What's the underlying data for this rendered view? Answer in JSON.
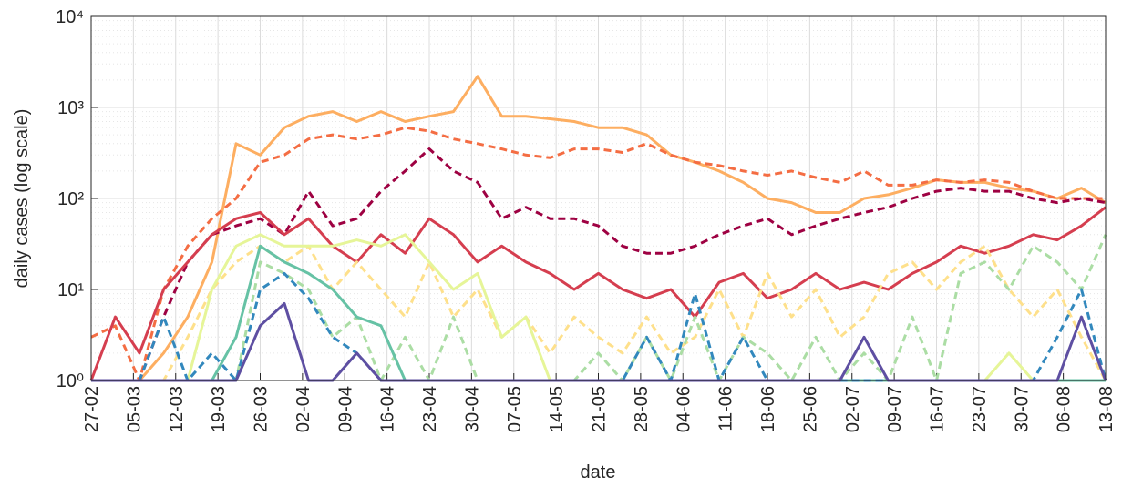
{
  "chart_data": {
    "type": "line",
    "x_label": "date",
    "y_label": "daily cases (log scale)",
    "log_y": true,
    "grid": true,
    "x": [
      0,
      4,
      8,
      12,
      16,
      20,
      24,
      28,
      32,
      36,
      40,
      44,
      48,
      52,
      56,
      60,
      64,
      68,
      72,
      76,
      80,
      84,
      88,
      92,
      96,
      100,
      104,
      108,
      112,
      116,
      120,
      124,
      128,
      132,
      136,
      140,
      144,
      148,
      152,
      156,
      160,
      164,
      168
    ],
    "xlim": [
      0,
      168
    ],
    "xticks": [
      {
        "value": 0,
        "label": "27-02"
      },
      {
        "value": 7,
        "label": "05-03"
      },
      {
        "value": 14,
        "label": "12-03"
      },
      {
        "value": 21,
        "label": "19-03"
      },
      {
        "value": 28,
        "label": "26-03"
      },
      {
        "value": 35,
        "label": "02-04"
      },
      {
        "value": 42,
        "label": "09-04"
      },
      {
        "value": 49,
        "label": "16-04"
      },
      {
        "value": 56,
        "label": "23-04"
      },
      {
        "value": 63,
        "label": "30-04"
      },
      {
        "value": 70,
        "label": "07-05"
      },
      {
        "value": 77,
        "label": "14-05"
      },
      {
        "value": 84,
        "label": "21-05"
      },
      {
        "value": 91,
        "label": "28-05"
      },
      {
        "value": 98,
        "label": "04-06"
      },
      {
        "value": 105,
        "label": "11-06"
      },
      {
        "value": 112,
        "label": "18-06"
      },
      {
        "value": 119,
        "label": "25-06"
      },
      {
        "value": 126,
        "label": "02-07"
      },
      {
        "value": 133,
        "label": "09-07"
      },
      {
        "value": 140,
        "label": "16-07"
      },
      {
        "value": 147,
        "label": "23-07"
      },
      {
        "value": 154,
        "label": "30-07"
      },
      {
        "value": 161,
        "label": "06-08"
      },
      {
        "value": 168,
        "label": "13-08"
      }
    ],
    "ylim": [
      1,
      10000
    ],
    "yticks": [
      {
        "value": 1,
        "label": "10⁰"
      },
      {
        "value": 10,
        "label": "10¹"
      },
      {
        "value": 100,
        "label": "10²"
      },
      {
        "value": 1000,
        "label": "10³"
      },
      {
        "value": 10000,
        "label": "10⁴"
      }
    ],
    "series": [
      {
        "color": "#fdae61",
        "dash": false,
        "values": [
          1,
          1,
          1,
          2,
          5,
          20,
          400,
          300,
          600,
          800,
          900,
          700,
          900,
          700,
          800,
          900,
          2200,
          800,
          800,
          750,
          700,
          600,
          600,
          500,
          300,
          250,
          200,
          150,
          100,
          90,
          70,
          70,
          100,
          110,
          130,
          160,
          150,
          150,
          130,
          120,
          100,
          130,
          90
        ]
      },
      {
        "color": "#f46d43",
        "dash": true,
        "values": [
          3,
          4,
          1,
          10,
          30,
          60,
          100,
          250,
          300,
          450,
          500,
          450,
          500,
          600,
          550,
          450,
          400,
          350,
          300,
          280,
          350,
          350,
          320,
          400,
          300,
          250,
          230,
          200,
          180,
          200,
          170,
          150,
          200,
          140,
          140,
          160,
          150,
          160,
          150,
          120,
          100,
          100,
          100
        ]
      },
      {
        "color": "#9e0142",
        "dash": true,
        "values": [
          1,
          1,
          1,
          5,
          20,
          40,
          50,
          60,
          40,
          120,
          50,
          60,
          120,
          200,
          350,
          200,
          150,
          60,
          80,
          60,
          60,
          50,
          30,
          25,
          25,
          30,
          40,
          50,
          60,
          40,
          50,
          60,
          70,
          80,
          100,
          120,
          130,
          120,
          120,
          100,
          90,
          100,
          90
        ]
      },
      {
        "color": "#d53e4f",
        "dash": false,
        "values": [
          1,
          5,
          2,
          10,
          20,
          40,
          60,
          70,
          40,
          60,
          30,
          20,
          40,
          25,
          60,
          40,
          20,
          30,
          20,
          15,
          10,
          15,
          10,
          8,
          10,
          5,
          12,
          15,
          8,
          10,
          15,
          10,
          12,
          10,
          15,
          20,
          30,
          25,
          30,
          40,
          35,
          50,
          80
        ]
      },
      {
        "color": "#fee08b",
        "dash": true,
        "values": [
          1,
          1,
          1,
          1,
          3,
          10,
          20,
          30,
          20,
          30,
          10,
          20,
          10,
          5,
          20,
          5,
          10,
          3,
          5,
          2,
          5,
          3,
          2,
          5,
          2,
          3,
          10,
          3,
          15,
          5,
          10,
          3,
          5,
          15,
          20,
          10,
          20,
          30,
          10,
          5,
          10,
          3,
          1
        ]
      },
      {
        "color": "#e6f598",
        "dash": false,
        "values": [
          1,
          1,
          1,
          1,
          1,
          10,
          30,
          40,
          30,
          30,
          30,
          35,
          30,
          40,
          20,
          10,
          15,
          3,
          5,
          1,
          1,
          1,
          1,
          1,
          1,
          1,
          1,
          1,
          1,
          1,
          1,
          1,
          1,
          1,
          1,
          1,
          1,
          1,
          2,
          1,
          1,
          1,
          1
        ]
      },
      {
        "color": "#abdda4",
        "dash": true,
        "values": [
          1,
          1,
          1,
          1,
          1,
          1,
          1,
          20,
          15,
          10,
          3,
          5,
          1,
          3,
          1,
          5,
          1,
          1,
          1,
          1,
          1,
          2,
          1,
          3,
          1,
          5,
          1,
          3,
          2,
          1,
          3,
          1,
          2,
          1,
          5,
          1,
          15,
          20,
          10,
          30,
          20,
          10,
          40
        ]
      },
      {
        "color": "#66c2a5",
        "dash": false,
        "values": [
          1,
          1,
          1,
          1,
          1,
          1,
          3,
          30,
          20,
          15,
          10,
          5,
          4,
          1,
          1,
          1,
          1,
          1,
          1,
          1,
          1,
          1,
          1,
          1,
          1,
          1,
          1,
          1,
          1,
          1,
          1,
          1,
          1,
          1,
          1,
          1,
          1,
          1,
          1,
          1,
          1,
          1,
          1
        ]
      },
      {
        "color": "#3288bd",
        "dash": true,
        "values": [
          1,
          1,
          1,
          5,
          1,
          2,
          1,
          10,
          15,
          8,
          3,
          2,
          1,
          1,
          1,
          1,
          1,
          1,
          1,
          1,
          1,
          1,
          1,
          3,
          1,
          9,
          1,
          3,
          1,
          1,
          1,
          1,
          1,
          1,
          1,
          1,
          1,
          1,
          1,
          1,
          3,
          10,
          1
        ]
      },
      {
        "color": "#5e4fa2",
        "dash": false,
        "values": [
          1,
          1,
          1,
          1,
          1,
          1,
          1,
          4,
          7,
          1,
          1,
          2,
          1,
          1,
          1,
          1,
          1,
          1,
          1,
          1,
          1,
          1,
          1,
          1,
          1,
          1,
          1,
          1,
          1,
          1,
          1,
          1,
          3,
          1,
          1,
          1,
          1,
          1,
          1,
          1,
          1,
          5,
          1
        ]
      }
    ]
  }
}
